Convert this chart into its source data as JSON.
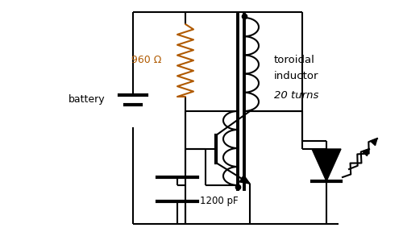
{
  "bg_color": "#ffffff",
  "line_color": "#000000",
  "resistor_color": "#b05a00",
  "text_color": "#000000",
  "fig_width": 5.0,
  "fig_height": 2.93,
  "dpi": 100,
  "resistor_label": "960 Ω",
  "capacitor_label": "1200 pF",
  "battery_label": "battery",
  "toroidal_label1": "toroidal",
  "toroidal_label2": "inductor",
  "toroidal_label3": "20 turns"
}
